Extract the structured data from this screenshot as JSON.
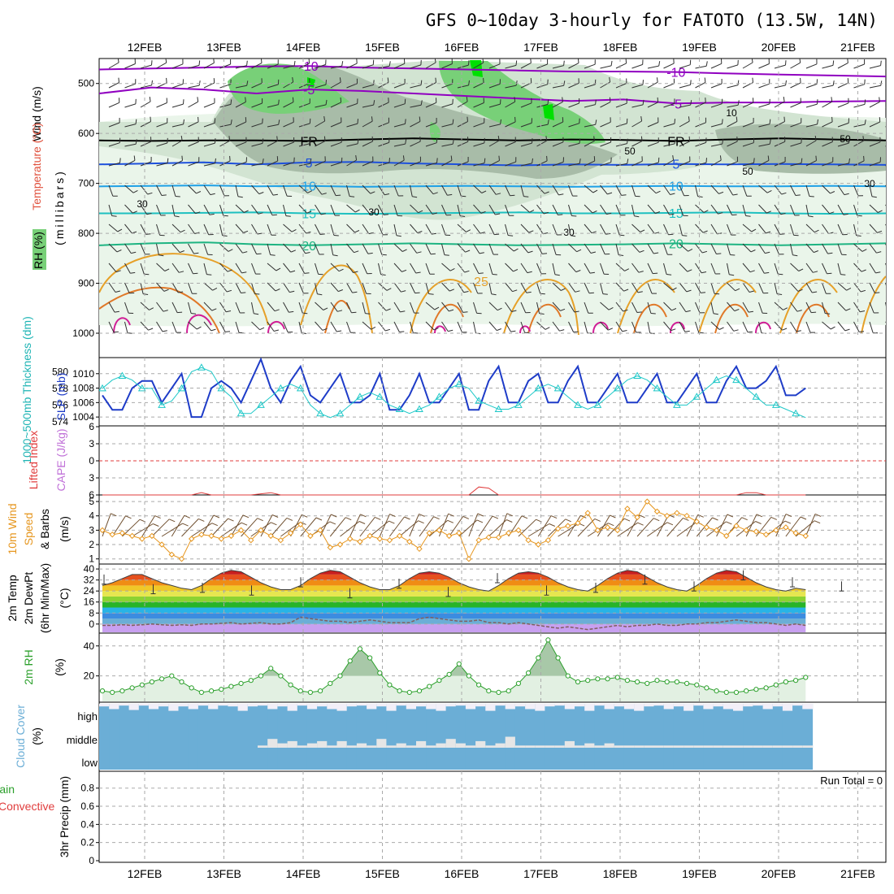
{
  "title": "GFS 0~10day 3-hourly for FATOTO (13.5W, 14N)",
  "dates": [
    "12FEB",
    "13FEB",
    "14FEB",
    "15FEB",
    "16FEB",
    "17FEB",
    "18FEB",
    "19FEB",
    "20FEB",
    "21FEB"
  ],
  "colors": {
    "rh_light": "#e8f4e8",
    "rh_mid": "#c8dcc8",
    "rh_dark": "#a8bca8",
    "rh_green": "#78d078",
    "rh_bright": "#00e000",
    "temp_neg": "#9000c0",
    "temp_zero": "#000000",
    "temp_5": "#1e50dc",
    "temp_10": "#1ea0e6",
    "temp_15": "#1ec0c0",
    "temp_20": "#1eb482",
    "temp_25": "#e6a028",
    "temp_30": "#e07828",
    "temp_35": "#d01e96",
    "slp": "#1e3cc8",
    "thickness": "#1ec8c8",
    "lifted": "#e03c3c",
    "wind_speed": "#e6961e",
    "barb": "#505050",
    "rh2m": "#2ca02c",
    "cloud": "#6baed6",
    "dewpt": "#909090"
  },
  "labels": {
    "upper": {
      "wind": "Wind (m/s)",
      "temperature": "Temperature (°C)",
      "rh": "RH (%)",
      "millibars": "(millibars)"
    },
    "slp": {
      "thickness": "1000~500mb Thickness (dm)",
      "slp": "SLP (mb)"
    },
    "lifted": {
      "lifted": "Lifted Index",
      "cape": "CAPE (J/kg)"
    },
    "wind10": {
      "line1": "10m Wind",
      "line2": "Speed",
      "line3": "& Barbs",
      "unit": "(m/s)"
    },
    "temp2m": {
      "line1": "2m Temp",
      "line2": "2m DewPt",
      "line3": "(6hr Min/Max)",
      "unit": "(°C)"
    },
    "rh2m": {
      "line1": "2m RH",
      "unit": "(%)"
    },
    "cloud": {
      "line1": "Cloud Cover",
      "unit": "(%)",
      "high": "high",
      "middle": "middle",
      "low": "low"
    },
    "precip": {
      "line1": "Total / Rain",
      "line2": "Convective",
      "line3": "3hr Precip (mm)",
      "run_total": "Run Total = 0"
    }
  },
  "chart_data": [
    {
      "type": "heatmap",
      "panel": "upper_air",
      "ylabel": "millibars",
      "pressure_ticks": [
        500,
        600,
        700,
        800,
        900,
        1000
      ],
      "ylim": [
        450,
        1000
      ],
      "rh_contour_labels": [
        "30",
        "30",
        "30",
        "10",
        "50",
        "50",
        "30",
        "50"
      ],
      "temperature_contours": [
        {
          "level": "-10",
          "label": "-10",
          "pressure": [
            472,
            470,
            468,
            466,
            465,
            468,
            470,
            472,
            474,
            476,
            476,
            477,
            480,
            482,
            484,
            486
          ]
        },
        {
          "level": "-5",
          "label": "-5",
          "pressure": [
            520,
            508,
            512,
            520,
            512,
            515,
            520,
            525,
            530,
            535,
            532,
            540,
            538,
            538,
            536,
            535
          ]
        },
        {
          "level": "FR",
          "label": "FR",
          "pressure": [
            614,
            615,
            614,
            614,
            615,
            612,
            610,
            612,
            614,
            612,
            613,
            615,
            612,
            610,
            612,
            614
          ]
        },
        {
          "level": "5",
          "label": "5",
          "pressure": [
            662,
            660,
            658,
            662,
            658,
            657,
            660,
            662,
            664,
            662,
            663,
            661,
            662,
            661,
            662,
            663
          ]
        },
        {
          "level": "10",
          "label": "10",
          "pressure": [
            706,
            705,
            704,
            706,
            705,
            707,
            706,
            705,
            706,
            707,
            706,
            705,
            706,
            706,
            705,
            706
          ]
        },
        {
          "level": "15",
          "label": "15",
          "pressure": [
            760,
            760,
            759,
            758,
            760,
            761,
            760,
            759,
            758,
            760,
            760,
            759,
            758,
            760,
            761,
            760
          ]
        },
        {
          "level": "20",
          "label": "20",
          "pressure": [
            824,
            820,
            818,
            822,
            824,
            822,
            820,
            822,
            824,
            823,
            822,
            820,
            822,
            824,
            822,
            820
          ]
        }
      ]
    },
    {
      "type": "line",
      "panel": "slp_thickness",
      "series": [
        {
          "name": "SLP (mb)",
          "values": [
            1007,
            1005,
            1005,
            1008,
            1009,
            1009,
            1006,
            1008,
            1010,
            1004,
            1004,
            1008,
            1009,
            1008,
            1006,
            1009,
            1012,
            1008,
            1006,
            1009,
            1011,
            1007,
            1006,
            1008,
            1010,
            1006,
            1006,
            1007,
            1010,
            1005,
            1005,
            1007,
            1010,
            1006,
            1006,
            1008,
            1010,
            1005,
            1005,
            1009,
            1011,
            1006,
            1006,
            1009,
            1010,
            1006,
            1006,
            1009,
            1011,
            1006,
            1006,
            1008,
            1010,
            1006,
            1006,
            1008,
            1010,
            1006,
            1006,
            1008,
            1010,
            1006,
            1006,
            1009,
            1011,
            1008,
            1008,
            1009,
            1011,
            1007,
            1007,
            1008
          ]
        },
        {
          "name": "1000~500mb Thickness (dm)",
          "values": [
            578,
            579,
            579.5,
            579,
            578,
            578,
            576,
            576.5,
            578,
            580,
            580.5,
            580,
            578,
            577,
            575,
            575,
            576,
            577,
            578,
            578.5,
            578,
            576,
            575,
            574.5,
            575,
            576,
            577,
            577.5,
            577,
            576,
            575.5,
            575,
            575.5,
            576,
            577,
            578,
            578.5,
            578,
            576.5,
            576,
            575.5,
            575.5,
            576,
            577,
            578,
            578.5,
            578,
            577,
            576,
            575.5,
            576,
            577,
            578,
            579,
            579.5,
            579,
            578,
            577,
            576,
            576,
            577,
            578,
            579,
            579.5,
            579,
            578,
            577,
            576,
            576,
            575.5,
            575,
            574.5
          ]
        }
      ],
      "axes": {
        "slp_ticks": [
          1004,
          1006,
          1008,
          1010
        ],
        "thickness_ticks": [
          574,
          576,
          578,
          580
        ]
      }
    },
    {
      "type": "line",
      "panel": "lifted_cape",
      "yticks": [
        -3,
        0,
        3,
        6
      ],
      "ylim": [
        -6,
        6
      ],
      "series": [
        {
          "name": "Lifted Index",
          "values": [
            6,
            6,
            6,
            6,
            6,
            6,
            6,
            6,
            6,
            6,
            5.6,
            6,
            6,
            6,
            6,
            6,
            5.8,
            5.6,
            6,
            6,
            6,
            6,
            6,
            6,
            6,
            6,
            6,
            6,
            6,
            6,
            6,
            6,
            6,
            6,
            6,
            6,
            6,
            6,
            4.6,
            4.8,
            6,
            6,
            6,
            6,
            6,
            6,
            6,
            6,
            6,
            6,
            6,
            6,
            6,
            6,
            6,
            6,
            6,
            6,
            6,
            6,
            6,
            6,
            6,
            6,
            6,
            5.6,
            5.6,
            6,
            6,
            6,
            6,
            6
          ]
        }
      ]
    },
    {
      "type": "line",
      "panel": "wind10m",
      "ylabel": "(m/s)",
      "yticks": [
        1,
        2,
        3,
        4,
        5
      ],
      "ylim": [
        0.7,
        5.4
      ],
      "series": [
        {
          "name": "Speed",
          "values": [
            3.0,
            2.7,
            2.8,
            2.6,
            2.4,
            2.6,
            2.0,
            1.3,
            1.0,
            2.4,
            2.7,
            2.6,
            2.4,
            2.6,
            3.0,
            2.3,
            3.0,
            2.6,
            2.3,
            2.8,
            3.4,
            2.6,
            3.0,
            1.8,
            2.0,
            2.4,
            2.2,
            2.6,
            2.4,
            2.3,
            2.6,
            2.2,
            1.7,
            2.8,
            3.0,
            2.6,
            2.8,
            1.0,
            2.3,
            2.5,
            2.5,
            2.8,
            3.0,
            2.3,
            2.0,
            2.3,
            3.1,
            3.3,
            3.5,
            4.2,
            3.0,
            3.2,
            3.0,
            4.5,
            3.9,
            5.0,
            4.3,
            4.0,
            4.2,
            4.0,
            3.6,
            3.2,
            3.0,
            2.6,
            3.3,
            3.0,
            2.9,
            2.7,
            3.0,
            3.2,
            2.8,
            2.6
          ]
        }
      ]
    },
    {
      "type": "area",
      "panel": "temp2m",
      "ylabel": "(°C)",
      "yticks": [
        0,
        8,
        16,
        24,
        32,
        40
      ],
      "ylim": [
        -6,
        43
      ],
      "series": [
        {
          "name": "2m Temp",
          "values": [
            28,
            30,
            33,
            36,
            36,
            33,
            30,
            28,
            26,
            25,
            28,
            33,
            37,
            39,
            38,
            34,
            30,
            27,
            25,
            25,
            28,
            33,
            37,
            39,
            38,
            34,
            30,
            27,
            25,
            25,
            28,
            33,
            37,
            38,
            37,
            34,
            30,
            27,
            25,
            24,
            28,
            33,
            37,
            38,
            37,
            34,
            30,
            27,
            25,
            24,
            28,
            33,
            37,
            39,
            38,
            34,
            30,
            27,
            25,
            24,
            28,
            33,
            37,
            39,
            38,
            34,
            30,
            27,
            25,
            24,
            26,
            25
          ]
        },
        {
          "name": "2m DewPt",
          "values": [
            -1,
            -1,
            -0.5,
            -1,
            -0.5,
            0,
            -0.5,
            -1,
            -0.5,
            -1,
            0,
            0,
            0.5,
            1,
            0,
            0.5,
            1,
            0,
            0,
            1,
            5,
            4,
            3,
            2,
            2,
            1,
            2,
            3,
            2,
            1,
            1,
            1,
            4,
            5,
            4,
            3,
            2,
            2,
            3,
            1,
            1,
            0,
            1,
            0,
            -1,
            -2,
            -3,
            -2,
            -3,
            -4,
            -3,
            -2,
            -1,
            -2,
            -1,
            -1,
            0,
            -1,
            -1,
            0,
            0,
            1,
            1,
            2,
            3,
            2,
            1,
            1,
            0,
            -1,
            0,
            -1
          ]
        }
      ],
      "minmax_markers": [
        29,
        22,
        23,
        21,
        27,
        19,
        26,
        20,
        30,
        21,
        23,
        29,
        24,
        32,
        27,
        24
      ]
    },
    {
      "type": "area",
      "panel": "rh2m",
      "ylabel": "(%)",
      "yticks": [
        20,
        40
      ],
      "ylim": [
        3,
        48
      ],
      "series": [
        {
          "name": "2m RH",
          "values": [
            10,
            9,
            10,
            12,
            14,
            16,
            18,
            20,
            16,
            12,
            9,
            10,
            11,
            13,
            15,
            17,
            20,
            25,
            20,
            14,
            10,
            9,
            10,
            15,
            20,
            30,
            38,
            32,
            22,
            14,
            10,
            9,
            10,
            13,
            17,
            21,
            28,
            20,
            14,
            10,
            9,
            10,
            15,
            22,
            32,
            44,
            32,
            20,
            16,
            17,
            18,
            18,
            19,
            17,
            16,
            15,
            17,
            16,
            16,
            15,
            14,
            12,
            10,
            9,
            9,
            10,
            11,
            12,
            14,
            16,
            17,
            19
          ]
        }
      ]
    },
    {
      "type": "heatmap",
      "panel": "cloud_cover",
      "ylabel": "(%)",
      "rows": [
        "high",
        "middle",
        "low"
      ],
      "high_values": [
        85,
        70,
        90,
        65,
        90,
        70,
        85,
        60,
        85,
        70,
        90,
        70,
        90,
        85,
        60,
        85,
        90,
        70,
        85,
        60,
        90,
        70,
        85,
        70,
        60,
        85,
        90,
        70,
        85,
        60,
        90,
        70,
        85,
        70,
        60,
        85,
        90,
        70,
        85,
        60,
        90,
        70,
        85,
        70,
        60,
        85,
        90,
        70,
        85,
        60,
        90,
        70,
        85,
        70,
        60,
        85,
        90,
        70,
        85,
        60,
        90,
        70,
        85,
        70,
        60,
        85,
        90,
        70,
        85,
        60,
        90,
        70
      ],
      "middle_values": [
        0,
        0,
        0,
        0,
        0,
        0,
        0,
        0,
        0,
        0,
        0,
        0,
        0,
        0,
        0,
        0,
        5,
        20,
        10,
        15,
        5,
        10,
        15,
        5,
        15,
        5,
        10,
        5,
        20,
        5,
        10,
        5,
        15,
        5,
        10,
        20,
        10,
        5,
        15,
        5,
        10,
        25,
        5,
        5,
        5,
        5,
        5,
        15,
        5,
        10,
        5,
        10,
        5,
        5,
        5,
        5,
        5,
        5,
        5,
        5,
        5,
        5,
        5,
        5,
        5,
        5,
        5,
        5,
        5,
        5,
        5,
        5
      ],
      "low_values": [
        0,
        0,
        0,
        0,
        0,
        0,
        0,
        0,
        0,
        0,
        0,
        0,
        0,
        0,
        0,
        0,
        0,
        0,
        0,
        0,
        0,
        0,
        0,
        0,
        0,
        0,
        0,
        0,
        0,
        0,
        0,
        0,
        0,
        0,
        0,
        0,
        0,
        0,
        0,
        0,
        0,
        0,
        0,
        0,
        0,
        0,
        0,
        0,
        0,
        0,
        0,
        0,
        0,
        0,
        0,
        0,
        0,
        0,
        0,
        0,
        0,
        0,
        0,
        0,
        0,
        0,
        0,
        0,
        0,
        0,
        0,
        0
      ]
    },
    {
      "type": "bar",
      "panel": "precip",
      "ylabel": "3hr Precip (mm)",
      "yticks": [
        0,
        0.2,
        0.4,
        0.6,
        0.8
      ],
      "ylim": [
        0,
        0.95
      ],
      "series": [
        {
          "name": "Total / Rain",
          "values": []
        },
        {
          "name": "Convective",
          "values": []
        }
      ]
    }
  ]
}
